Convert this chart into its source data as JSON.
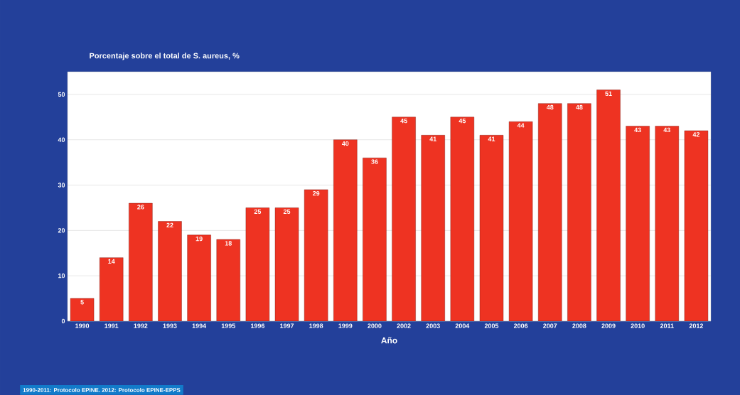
{
  "chart_data": {
    "type": "bar",
    "ylabel": "Porcentaje sobre el total de S. aureus, %",
    "xlabel": "Año",
    "annotations": [
      "1990-2011: Protocolo EPINE.  2012: Protocolo EPINE-EPPS"
    ],
    "categories": [
      "1990",
      "1991",
      "1992",
      "1993",
      "1994",
      "1995",
      "1996",
      "1997",
      "1998",
      "1999",
      "2000",
      "2002",
      "2003",
      "2004",
      "2005",
      "2006",
      "2007",
      "2008",
      "2009",
      "2010",
      "2011",
      "2012"
    ],
    "values": [
      5,
      14,
      26,
      22,
      19,
      18,
      25,
      25,
      29,
      40,
      36,
      45,
      41,
      45,
      41,
      44,
      48,
      48,
      51,
      43,
      43,
      42
    ],
    "color": "#ee3322",
    "ylim": [
      0,
      55
    ],
    "yticks": [
      0,
      10,
      20,
      30,
      40,
      50
    ],
    "grid": "y",
    "data_labels": true
  }
}
